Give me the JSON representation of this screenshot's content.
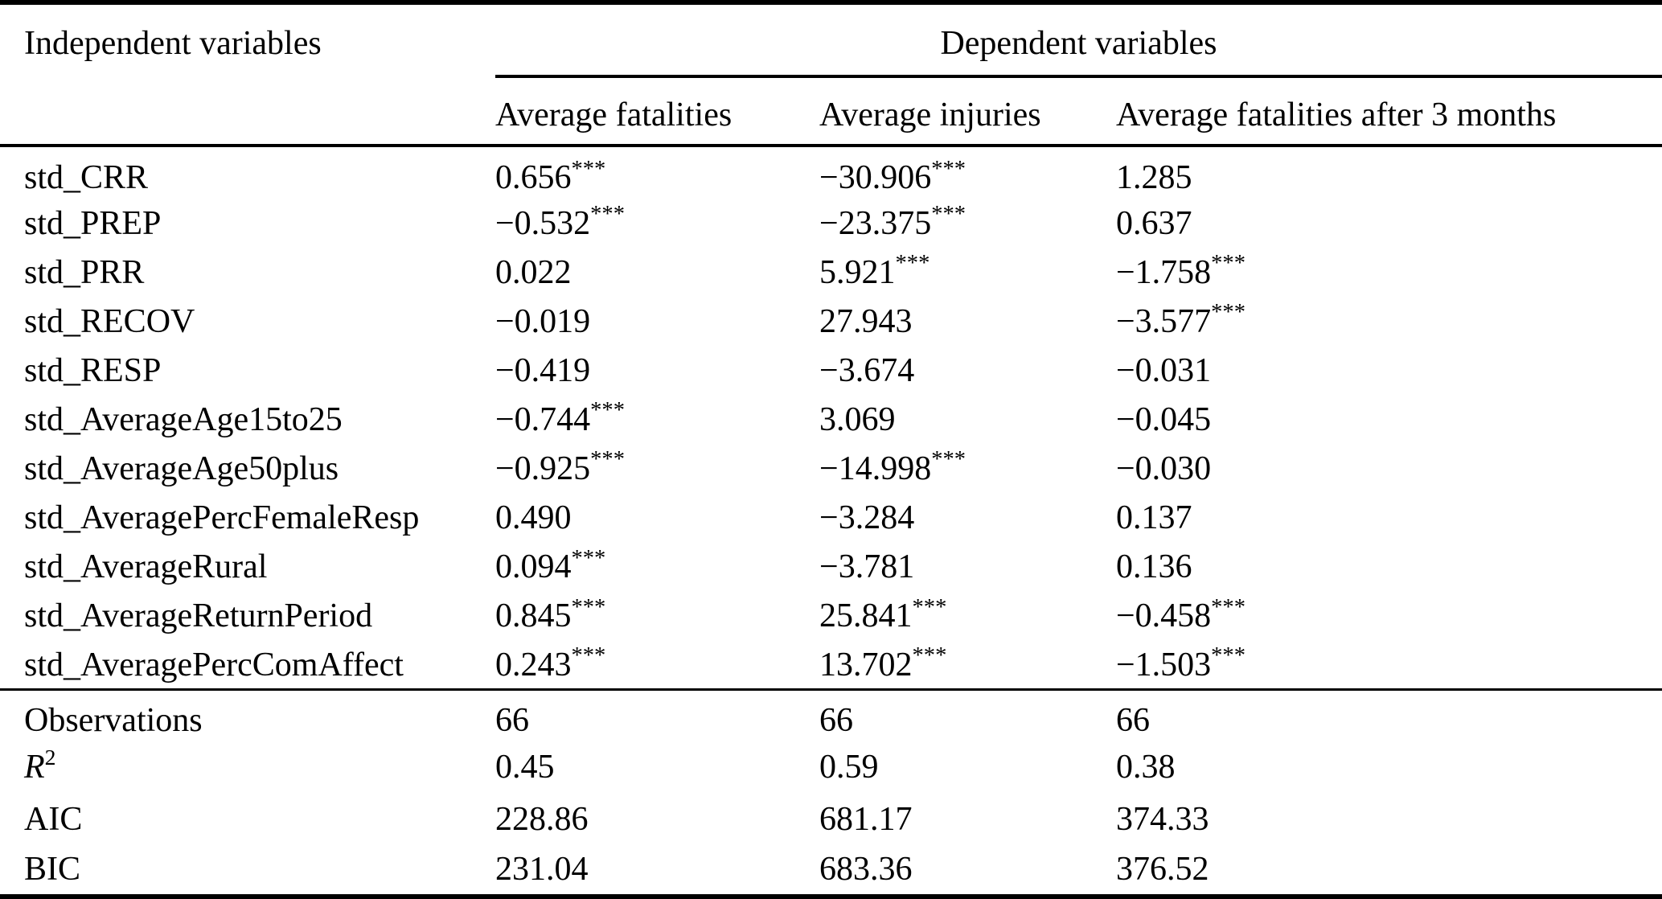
{
  "table": {
    "col1_header": "Independent variables",
    "group_header": "Dependent variables",
    "dep_columns": [
      "Average fatalities",
      "Average injuries",
      "Average fatalities after 3 months"
    ],
    "rows": [
      {
        "label": "std_CRR",
        "c1": {
          "v": "0.656",
          "s": "***"
        },
        "c2": {
          "v": "−30.906",
          "s": "***"
        },
        "c3": {
          "v": "1.285",
          "s": ""
        }
      },
      {
        "label": "std_PREP",
        "c1": {
          "v": "−0.532",
          "s": "***"
        },
        "c2": {
          "v": "−23.375",
          "s": "***"
        },
        "c3": {
          "v": "0.637",
          "s": ""
        }
      },
      {
        "label": "std_PRR",
        "c1": {
          "v": "0.022",
          "s": ""
        },
        "c2": {
          "v": "5.921",
          "s": "***"
        },
        "c3": {
          "v": "−1.758",
          "s": "***"
        }
      },
      {
        "label": "std_RECOV",
        "c1": {
          "v": "−0.019",
          "s": ""
        },
        "c2": {
          "v": "27.943",
          "s": ""
        },
        "c3": {
          "v": "−3.577",
          "s": "***"
        }
      },
      {
        "label": "std_RESP",
        "c1": {
          "v": "−0.419",
          "s": ""
        },
        "c2": {
          "v": "−3.674",
          "s": ""
        },
        "c3": {
          "v": "−0.031",
          "s": ""
        }
      },
      {
        "label": "std_AverageAge15to25",
        "c1": {
          "v": "−0.744",
          "s": "***"
        },
        "c2": {
          "v": "3.069",
          "s": ""
        },
        "c3": {
          "v": "−0.045",
          "s": ""
        }
      },
      {
        "label": "std_AverageAge50plus",
        "c1": {
          "v": "−0.925",
          "s": "***"
        },
        "c2": {
          "v": "−14.998",
          "s": "***"
        },
        "c3": {
          "v": "−0.030",
          "s": ""
        }
      },
      {
        "label": "std_AveragePercFemaleResp",
        "c1": {
          "v": "0.490",
          "s": ""
        },
        "c2": {
          "v": "−3.284",
          "s": ""
        },
        "c3": {
          "v": "0.137",
          "s": ""
        }
      },
      {
        "label": "std_AverageRural",
        "c1": {
          "v": "0.094",
          "s": "***"
        },
        "c2": {
          "v": "−3.781",
          "s": ""
        },
        "c3": {
          "v": "0.136",
          "s": ""
        }
      },
      {
        "label": "std_AverageReturnPeriod",
        "c1": {
          "v": "0.845",
          "s": "***"
        },
        "c2": {
          "v": "25.841",
          "s": "***"
        },
        "c3": {
          "v": "−0.458",
          "s": "***"
        }
      },
      {
        "label": "std_AveragePercComAffect",
        "c1": {
          "v": "0.243",
          "s": "***"
        },
        "c2": {
          "v": "13.702",
          "s": "***"
        },
        "c3": {
          "v": "−1.503",
          "s": "***"
        }
      }
    ],
    "stats": [
      {
        "label": "Observations",
        "sup": "",
        "c1": "66",
        "c2": "66",
        "c3": "66"
      },
      {
        "label": "R",
        "sup": "2",
        "c1": "0.45",
        "c2": "0.59",
        "c3": "0.38"
      },
      {
        "label": "AIC",
        "sup": "",
        "c1": "228.86",
        "c2": "681.17",
        "c3": "374.33"
      },
      {
        "label": "BIC",
        "sup": "",
        "c1": "231.04",
        "c2": "683.36",
        "c3": "376.52"
      }
    ]
  }
}
